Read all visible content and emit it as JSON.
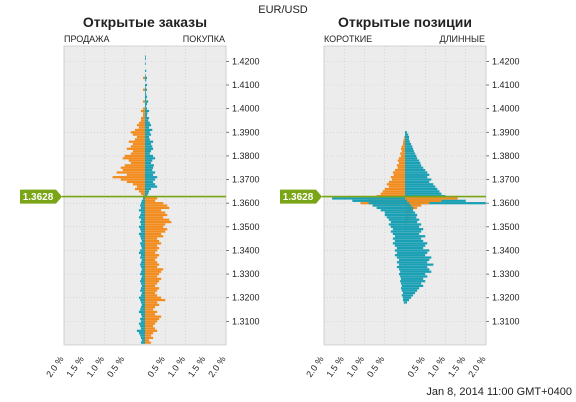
{
  "header": {
    "pair": "EUR/USD",
    "timestamp": "Jan 8, 2014 11:00 GMT+0400"
  },
  "current_price": "1.3628",
  "colors": {
    "orange": "#f28c1e",
    "teal": "#1aa0b4",
    "price_line": "#7aa517",
    "plot_bg": "#ececec",
    "grid": "#c9c9c9"
  },
  "chart_data": [
    {
      "type": "bar",
      "orientation": "horizontal-diverging",
      "title": "Открытые заказы",
      "left_label": "ПРОДАЖА",
      "right_label": "ПОКУПКА",
      "y_ticks": [
        "1.4200",
        "1.4100",
        "1.4000",
        "1.3900",
        "1.3800",
        "1.3700",
        "1.3600",
        "1.3500",
        "1.3400",
        "1.3300",
        "1.3200",
        "1.3100"
      ],
      "x_ticks": [
        "2.0 %",
        "1.5 %",
        "1.0 %",
        "0.5 %",
        "0.5 %",
        "1.0 %",
        "1.5 %",
        "2.0 %"
      ],
      "ylim": [
        1.3,
        1.4265
      ],
      "xlim_percent": [
        -2.0,
        2.0
      ],
      "series": [
        {
          "side": "upper",
          "price_start": 1.422,
          "price_step": -0.001,
          "orange_left": [
            0.0,
            0.0,
            0.0,
            0.0,
            0.0,
            0.0,
            0.0,
            0.0,
            0.0,
            0.05,
            0.0,
            0.0,
            0.0,
            0.0,
            0.05,
            0.0,
            0.0,
            0.0,
            0.0,
            0.05,
            0.0,
            0.0,
            0.05,
            0.1,
            0.05,
            0.05,
            0.1,
            0.1,
            0.15,
            0.2,
            0.15,
            0.25,
            0.35,
            0.3,
            0.2,
            0.25,
            0.4,
            0.3,
            0.35,
            0.45,
            0.3,
            0.35,
            0.5,
            0.55,
            0.4,
            0.35,
            0.5,
            0.6,
            0.55,
            0.7,
            0.45,
            0.8,
            0.6,
            0.45,
            0.3,
            0.2,
            0.25,
            0.15,
            0.1,
            0.05
          ],
          "teal_right": [
            0.02,
            0.02,
            0.0,
            0.02,
            0.0,
            0.0,
            0.03,
            0.0,
            0.02,
            0.05,
            0.03,
            0.0,
            0.05,
            0.02,
            0.05,
            0.02,
            0.03,
            0.05,
            0.03,
            0.08,
            0.05,
            0.03,
            0.05,
            0.1,
            0.06,
            0.05,
            0.1,
            0.08,
            0.12,
            0.15,
            0.1,
            0.18,
            0.12,
            0.15,
            0.1,
            0.12,
            0.2,
            0.15,
            0.18,
            0.2,
            0.15,
            0.12,
            0.2,
            0.25,
            0.18,
            0.15,
            0.22,
            0.2,
            0.18,
            0.25,
            0.2,
            0.3,
            0.25,
            0.2,
            0.25,
            0.3,
            0.15,
            0.1,
            0.08,
            0.05
          ]
        },
        {
          "side": "lower",
          "price_start": 1.362,
          "price_step": -0.001,
          "teal_left": [
            0.05,
            0.08,
            0.1,
            0.12,
            0.1,
            0.15,
            0.1,
            0.12,
            0.15,
            0.1,
            0.12,
            0.1,
            0.15,
            0.12,
            0.1,
            0.15,
            0.12,
            0.1,
            0.08,
            0.12,
            0.1,
            0.08,
            0.12,
            0.15,
            0.1,
            0.12,
            0.08,
            0.1,
            0.12,
            0.1,
            0.08,
            0.1,
            0.12,
            0.08,
            0.1,
            0.12,
            0.1,
            0.08,
            0.1,
            0.12,
            0.08,
            0.1,
            0.15,
            0.12,
            0.1,
            0.08,
            0.1,
            0.12,
            0.15,
            0.1,
            0.08,
            0.12,
            0.1,
            0.15,
            0.12,
            0.1,
            0.2,
            0.15,
            0.12,
            0.1,
            0.08,
            0.1
          ],
          "orange_right": [
            0.3,
            0.25,
            0.45,
            0.55,
            0.6,
            0.4,
            0.5,
            0.55,
            0.45,
            0.6,
            0.65,
            0.5,
            0.45,
            0.55,
            0.5,
            0.4,
            0.45,
            0.3,
            0.35,
            0.4,
            0.3,
            0.35,
            0.3,
            0.25,
            0.35,
            0.3,
            0.25,
            0.3,
            0.35,
            0.3,
            0.45,
            0.4,
            0.35,
            0.3,
            0.4,
            0.35,
            0.3,
            0.25,
            0.35,
            0.3,
            0.25,
            0.3,
            0.4,
            0.5,
            0.3,
            0.35,
            0.25,
            0.2,
            0.3,
            0.25,
            0.4,
            0.35,
            0.3,
            0.25,
            0.2,
            0.25,
            0.3,
            0.2,
            0.15,
            0.2,
            0.1,
            0.15
          ]
        }
      ]
    },
    {
      "type": "bar",
      "orientation": "horizontal-diverging",
      "title": "Открытые позиции",
      "left_label": "КОРОТКИЕ",
      "right_label": "ДЛИННЫЕ",
      "y_ticks": [
        "1.4200",
        "1.4100",
        "1.4000",
        "1.3900",
        "1.3800",
        "1.3700",
        "1.3600",
        "1.3500",
        "1.3400",
        "1.3300",
        "1.3200",
        "1.3100"
      ],
      "x_ticks": [
        "2.0 %",
        "1.5 %",
        "1.0 %",
        "0.5 %",
        "0.5 %",
        "1.0 %",
        "1.5 %",
        "2.0 %"
      ],
      "ylim": [
        1.3,
        1.4265
      ],
      "xlim_percent": [
        -2.0,
        2.0
      ],
      "series": [
        {
          "side": "upper",
          "price_start": 1.39,
          "price_step": -0.001,
          "orange_left": [
            0.0,
            0.0,
            0.02,
            0.03,
            0.05,
            0.05,
            0.08,
            0.1,
            0.08,
            0.12,
            0.1,
            0.15,
            0.18,
            0.15,
            0.2,
            0.18,
            0.25,
            0.3,
            0.28,
            0.35,
            0.32,
            0.4,
            0.45,
            0.4,
            0.5,
            0.55,
            0.6,
            0.7,
            0.8,
            0.9,
            1.1
          ],
          "teal_right": [
            0.05,
            0.08,
            0.1,
            0.1,
            0.12,
            0.15,
            0.18,
            0.2,
            0.22,
            0.25,
            0.28,
            0.3,
            0.35,
            0.38,
            0.4,
            0.45,
            0.5,
            0.55,
            0.6,
            0.55,
            0.65,
            0.6,
            0.7,
            0.75,
            0.8,
            0.85,
            0.9,
            1.0,
            1.2,
            1.5,
            2.0
          ]
        },
        {
          "side": "lower",
          "price_start": 1.362,
          "price_step": -0.001,
          "teal_left": [
            1.8,
            1.3,
            0.9,
            0.8,
            0.7,
            0.6,
            0.5,
            0.5,
            0.45,
            0.4,
            0.35,
            0.4,
            0.35,
            0.3,
            0.35,
            0.3,
            0.25,
            0.3,
            0.25,
            0.3,
            0.25,
            0.2,
            0.25,
            0.2,
            0.25,
            0.2,
            0.15,
            0.2,
            0.15,
            0.2,
            0.15,
            0.12,
            0.15,
            0.12,
            0.1,
            0.12,
            0.1,
            0.08,
            0.1,
            0.08,
            0.05,
            0.08,
            0.05,
            0.05,
            0.03
          ],
          "orange_right": [
            1.3,
            0.9,
            0.6,
            0.4,
            0.3,
            0.2,
            0.15,
            0.12,
            0.1,
            0.08,
            0.05,
            0.05,
            0.03,
            0.02,
            0.02,
            0.0,
            0.0,
            0.0,
            0.0,
            0.0,
            0.0,
            0.0,
            0.0,
            0.0,
            0.0,
            0.0,
            0.0,
            0.0,
            0.0,
            0.0,
            0.0,
            0.0,
            0.0,
            0.0,
            0.0,
            0.0,
            0.0,
            0.0,
            0.0,
            0.0,
            0.0,
            0.0,
            0.0,
            0.0,
            0.0
          ],
          "teal_right_lower": [
            0.0,
            0.05,
            0.1,
            0.15,
            0.2,
            0.2,
            0.25,
            0.3,
            0.28,
            0.35,
            0.3,
            0.4,
            0.35,
            0.45,
            0.4,
            0.35,
            0.5,
            0.4,
            0.45,
            0.55,
            0.5,
            0.45,
            0.6,
            0.55,
            0.5,
            0.65,
            0.6,
            0.55,
            0.7,
            0.55,
            0.6,
            0.65,
            0.5,
            0.55,
            0.45,
            0.5,
            0.4,
            0.45,
            0.35,
            0.3,
            0.25,
            0.2,
            0.15,
            0.1,
            0.05
          ]
        }
      ]
    }
  ]
}
